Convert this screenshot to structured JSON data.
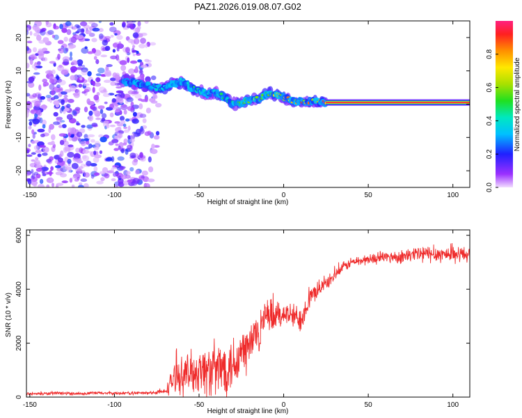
{
  "colors": {
    "background": "#ffffff",
    "snr_line": "#ef2b2b",
    "trace_center": "#ff2020",
    "frame": "#000000"
  },
  "chart_data": [
    {
      "type": "heatmap",
      "title": "PAZ1.2026.019.08.07.G02",
      "xlabel": "Height of straight line (km)",
      "ylabel": "Frequency (Hz)",
      "xlim": [
        -152,
        110
      ],
      "ylim": [
        -25,
        25
      ],
      "xticks": [
        "-150",
        "-100",
        "-50",
        "0",
        "50",
        "100"
      ],
      "xtick_values": [
        -150,
        -100,
        -50,
        0,
        50,
        100
      ],
      "yticks": [
        "20",
        "10",
        "0",
        "-10",
        "-20"
      ],
      "ytick_values": [
        20,
        10,
        0,
        -10,
        -20
      ],
      "colorbar": {
        "label": "Normalized spectral amplitude",
        "range": [
          0,
          1
        ],
        "ticks": [
          "0.0",
          "0.2",
          "0.4",
          "0.6",
          "0.8"
        ],
        "tick_values": [
          0.0,
          0.2,
          0.4,
          0.6,
          0.8
        ]
      },
      "ridge": {
        "x": [
          -95,
          -90,
          -85,
          -80,
          -75,
          -70,
          -65,
          -60,
          -55,
          -50,
          -45,
          -40,
          -35,
          -30,
          -25,
          -20,
          -15,
          -10,
          -5,
          0,
          5,
          10,
          15,
          20,
          25,
          100,
          110
        ],
        "freq": [
          7,
          6.5,
          6,
          5.5,
          5,
          5,
          6,
          7,
          5,
          4,
          3,
          3.5,
          2,
          0,
          0.5,
          1,
          1.5,
          3,
          3,
          2,
          1,
          1,
          1,
          0.5,
          0.5,
          0.5,
          0.5
        ],
        "amplitude": [
          0.2,
          0.25,
          0.25,
          0.3,
          0.45,
          0.4,
          0.35,
          0.35,
          0.45,
          0.5,
          0.45,
          0.45,
          0.5,
          0.5,
          0.55,
          0.6,
          0.6,
          0.65,
          0.7,
          0.75,
          0.8,
          0.85,
          0.85,
          0.9,
          0.95,
          0.95,
          0.95
        ]
      },
      "noise_region": {
        "x_range": [
          -152,
          -72
        ],
        "freq_range": [
          -25,
          25
        ]
      }
    },
    {
      "type": "line",
      "xlabel": "Height of straight line (km)",
      "ylabel": "SNR (10 * v/v)",
      "xlim": [
        -152,
        110
      ],
      "ylim": [
        0,
        6200
      ],
      "xticks": [
        "-150",
        "-100",
        "-50",
        "0",
        "50",
        "100"
      ],
      "xtick_values": [
        -150,
        -100,
        -50,
        0,
        50,
        100
      ],
      "yticks": [
        "0",
        "2000",
        "4000",
        "6000"
      ],
      "ytick_values": [
        0,
        2000,
        4000,
        6000
      ],
      "series": [
        {
          "name": "SNR",
          "x": [
            -152,
            -140,
            -130,
            -120,
            -110,
            -100,
            -90,
            -80,
            -70,
            -68,
            -65,
            -60,
            -55,
            -50,
            -45,
            -40,
            -35,
            -30,
            -25,
            -20,
            -15,
            -10,
            -5,
            0,
            5,
            10,
            15,
            20,
            25,
            30,
            35,
            40,
            50,
            60,
            70,
            80,
            90,
            100,
            110
          ],
          "values": [
            120,
            130,
            140,
            130,
            150,
            140,
            150,
            150,
            200,
            400,
            700,
            800,
            900,
            1000,
            1000,
            1000,
            1100,
            1300,
            1600,
            1900,
            2500,
            2900,
            3000,
            3100,
            3000,
            2900,
            3600,
            4000,
            4200,
            4500,
            4800,
            5000,
            5100,
            5200,
            5200,
            5300,
            5300,
            5300,
            5300
          ],
          "noise": [
            50,
            50,
            50,
            50,
            50,
            50,
            50,
            50,
            80,
            250,
            450,
            550,
            650,
            700,
            800,
            900,
            900,
            900,
            900,
            800,
            700,
            600,
            500,
            350,
            400,
            400,
            350,
            250,
            200,
            180,
            160,
            160,
            160,
            180,
            200,
            300,
            250,
            250,
            250
          ]
        }
      ]
    }
  ]
}
